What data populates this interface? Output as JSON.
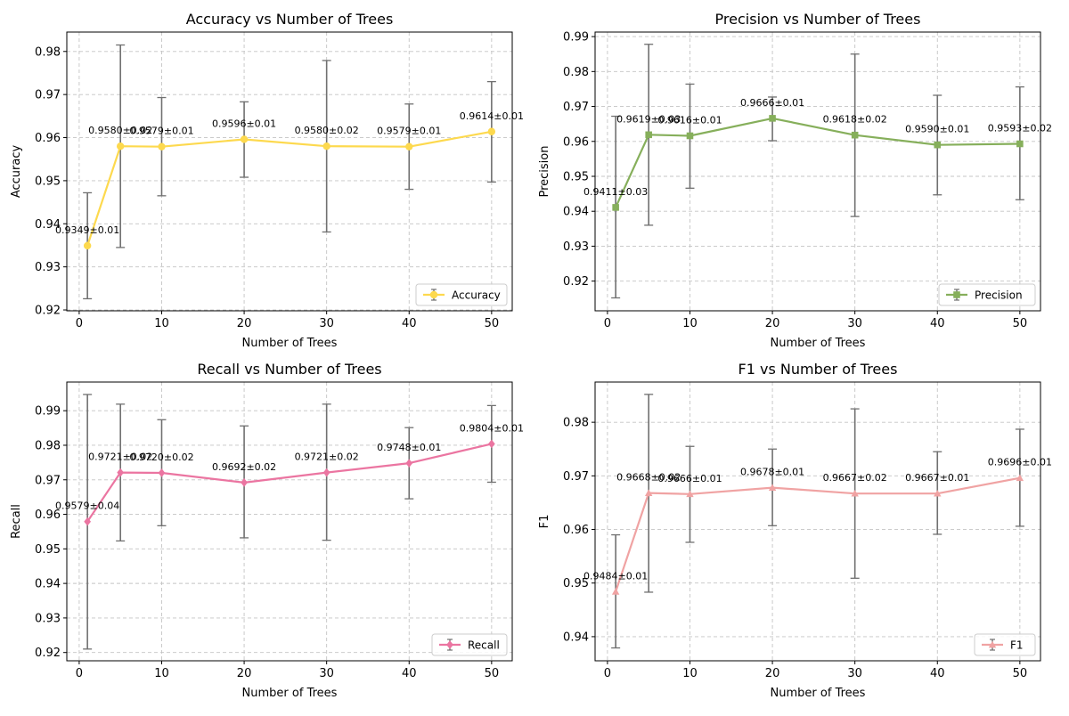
{
  "figure": {
    "background": "#ffffff"
  },
  "chart_data": [
    {
      "type": "line",
      "title": "Accuracy vs Number of Trees",
      "xlabel": "Number of Trees",
      "ylabel": "Accuracy",
      "color": "#FDD94E",
      "marker": "circle",
      "x": [
        1,
        5,
        10,
        20,
        30,
        40,
        50
      ],
      "xlim": [
        -1.5,
        52.5
      ],
      "xticks": [
        "0",
        "10",
        "20",
        "30",
        "40",
        "50"
      ],
      "ylim": [
        0.9198,
        0.9845
      ],
      "yticks": [
        "0.92",
        "0.93",
        "0.94",
        "0.95",
        "0.96",
        "0.97",
        "0.98"
      ],
      "grid": true,
      "legend_position": "lower-right",
      "series": [
        {
          "name": "Accuracy",
          "values": [
            0.9349,
            0.958,
            0.9579,
            0.9596,
            0.958,
            0.9579,
            0.9614
          ],
          "err_low": [
            0.9226,
            0.9345,
            0.9465,
            0.9508,
            0.9381,
            0.948,
            0.9497
          ],
          "err_high": [
            0.9472,
            0.9815,
            0.9693,
            0.9683,
            0.9779,
            0.9678,
            0.973
          ],
          "labels": [
            "0.9349±0.01",
            "0.9580±0.02",
            "0.9579±0.01",
            "0.9596±0.01",
            "0.9580±0.02",
            "0.9579±0.01",
            "0.9614±0.01"
          ]
        }
      ]
    },
    {
      "type": "line",
      "title": "Precision vs Number of Trees",
      "xlabel": "Number of Trees",
      "ylabel": "Precision",
      "color": "#86AF5B",
      "marker": "square",
      "x": [
        1,
        5,
        10,
        20,
        30,
        40,
        50
      ],
      "xlim": [
        -1.5,
        52.5
      ],
      "xticks": [
        "0",
        "10",
        "20",
        "30",
        "40",
        "50"
      ],
      "ylim": [
        0.9115,
        0.9913
      ],
      "yticks": [
        "0.92",
        "0.93",
        "0.94",
        "0.95",
        "0.96",
        "0.97",
        "0.98",
        "0.99"
      ],
      "grid": true,
      "legend_position": "lower-right",
      "series": [
        {
          "name": "Precision",
          "values": [
            0.9411,
            0.9619,
            0.9616,
            0.9666,
            0.9618,
            0.959,
            0.9593
          ],
          "err_low": [
            0.9152,
            0.936,
            0.9466,
            0.9602,
            0.9385,
            0.9447,
            0.9433
          ],
          "err_high": [
            0.9672,
            0.9878,
            0.9764,
            0.9727,
            0.985,
            0.9732,
            0.9756
          ],
          "labels": [
            "0.9411±0.03",
            "0.9619±0.03",
            "0.9616±0.01",
            "0.9666±0.01",
            "0.9618±0.02",
            "0.9590±0.01",
            "0.9593±0.02"
          ]
        }
      ]
    },
    {
      "type": "line",
      "title": "Recall vs Number of Trees",
      "xlabel": "Number of Trees",
      "ylabel": "Recall",
      "color": "#EB75A1",
      "marker": "diamond",
      "x": [
        1,
        5,
        10,
        20,
        30,
        40,
        50
      ],
      "xlim": [
        -1.5,
        52.5
      ],
      "xticks": [
        "0",
        "10",
        "20",
        "30",
        "40",
        "50"
      ],
      "ylim": [
        0.9176,
        0.9983
      ],
      "yticks": [
        "0.92",
        "0.93",
        "0.94",
        "0.95",
        "0.96",
        "0.97",
        "0.98",
        "0.99"
      ],
      "grid": true,
      "legend_position": "lower-right",
      "series": [
        {
          "name": "Recall",
          "values": [
            0.9579,
            0.9721,
            0.972,
            0.9692,
            0.9721,
            0.9748,
            0.9804
          ],
          "err_low": [
            0.921,
            0.9523,
            0.9567,
            0.9532,
            0.9525,
            0.9645,
            0.9693
          ],
          "err_high": [
            0.9947,
            0.9919,
            0.9874,
            0.9856,
            0.9919,
            0.9851,
            0.9915
          ],
          "labels": [
            "0.9579±0.04",
            "0.9721±0.02",
            "0.9720±0.02",
            "0.9692±0.02",
            "0.9721±0.02",
            "0.9748±0.01",
            "0.9804±0.01"
          ]
        }
      ]
    },
    {
      "type": "line",
      "title": "F1 vs Number of Trees",
      "xlabel": "Number of Trees",
      "ylabel": "F1",
      "color": "#F0A3A3",
      "marker": "triangle",
      "x": [
        1,
        5,
        10,
        20,
        30,
        40,
        50
      ],
      "xlim": [
        -1.5,
        52.5
      ],
      "xticks": [
        "0",
        "10",
        "20",
        "30",
        "40",
        "50"
      ],
      "ylim": [
        0.9355,
        0.9875
      ],
      "yticks": [
        "0.94",
        "0.95",
        "0.96",
        "0.97",
        "0.98"
      ],
      "grid": true,
      "legend_position": "lower-right",
      "series": [
        {
          "name": "F1",
          "values": [
            0.9484,
            0.9668,
            0.9666,
            0.9678,
            0.9667,
            0.9667,
            0.9696
          ],
          "err_low": [
            0.9379,
            0.9483,
            0.9576,
            0.9607,
            0.9509,
            0.9591,
            0.9606
          ],
          "err_high": [
            0.959,
            0.9852,
            0.9755,
            0.975,
            0.9825,
            0.9745,
            0.9787
          ],
          "labels": [
            "0.9484±0.01",
            "0.9668±0.02",
            "0.9666±0.01",
            "0.9678±0.01",
            "0.9667±0.02",
            "0.9667±0.01",
            "0.9696±0.01"
          ]
        }
      ]
    }
  ]
}
